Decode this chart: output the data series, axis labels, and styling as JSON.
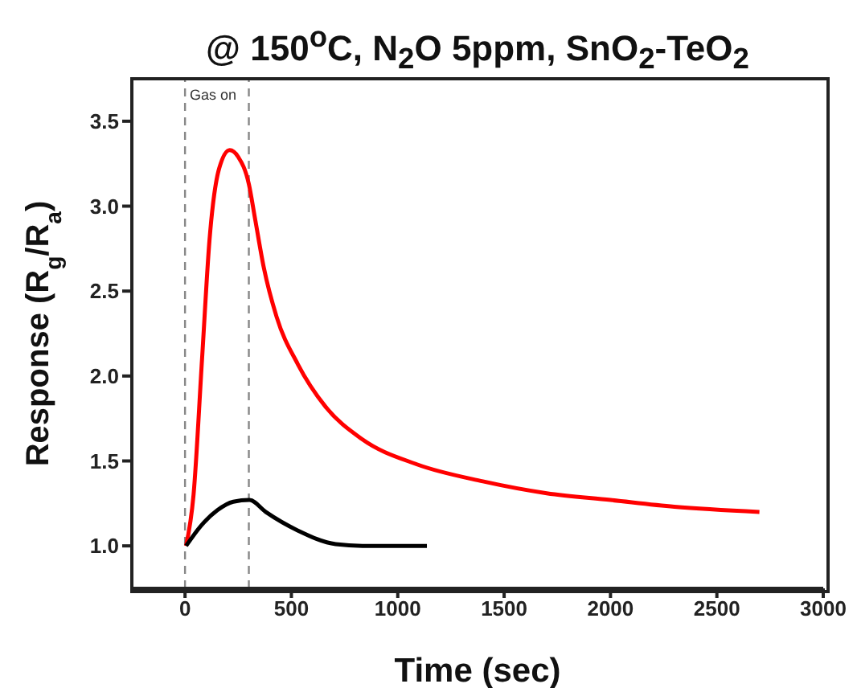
{
  "chart_data": {
    "type": "line",
    "title": "@ 150$^{o}$C, N$_{2}$O 5ppm, SnO$_{2}$-TeO$_{2}$",
    "xlabel": "Time (sec)",
    "ylabel": "Response (R$_{g}$/R$_{a}$)",
    "annotations": [
      "Gas on"
    ],
    "series": [
      {
        "color": "#ff0000",
        "x": [
          5,
          40,
          80,
          115,
          160,
          210,
          250,
          300,
          330,
          370,
          430,
          530,
          660,
          830,
          1090,
          1400,
          1700,
          2000,
          2300,
          2700
        ],
        "values": [
          1.0,
          1.3,
          2.1,
          2.8,
          3.22,
          3.33,
          3.29,
          3.13,
          2.92,
          2.64,
          2.35,
          2.07,
          1.82,
          1.63,
          1.48,
          1.38,
          1.31,
          1.27,
          1.23,
          1.2
        ]
      },
      {
        "color": "#000000",
        "x": [
          5,
          76,
          152,
          227,
          303,
          379,
          531,
          708,
          834,
          1137
        ],
        "values": [
          1.0,
          1.12,
          1.21,
          1.26,
          1.27,
          1.2,
          1.09,
          1.01,
          1.0,
          1.0
        ]
      }
    ],
    "xlim": [
      -250,
      3000
    ],
    "xticks": [
      0,
      500,
      1000,
      1500,
      2000,
      2500,
      3000
    ],
    "ylim": [
      0.75,
      3.75
    ],
    "yticks": [
      {
        "value": 1,
        "label": "1.0"
      },
      {
        "value": 1.5,
        "label": "1.5"
      },
      {
        "value": 2,
        "label": "2.0"
      },
      {
        "value": 2.5,
        "label": "2.5"
      },
      {
        "value": 3,
        "label": "3.0"
      },
      {
        "value": 3.5,
        "label": "3.5"
      }
    ],
    "ref_lines": [
      {
        "axis": "x",
        "value": 0,
        "color": "#888888",
        "line_style": "dashed"
      },
      {
        "axis": "x",
        "value": 300,
        "color": "#888888",
        "line_style": "dashed"
      }
    ],
    "grid": false,
    "legend": false,
    "marker": "none",
    "line_style": "solid"
  }
}
